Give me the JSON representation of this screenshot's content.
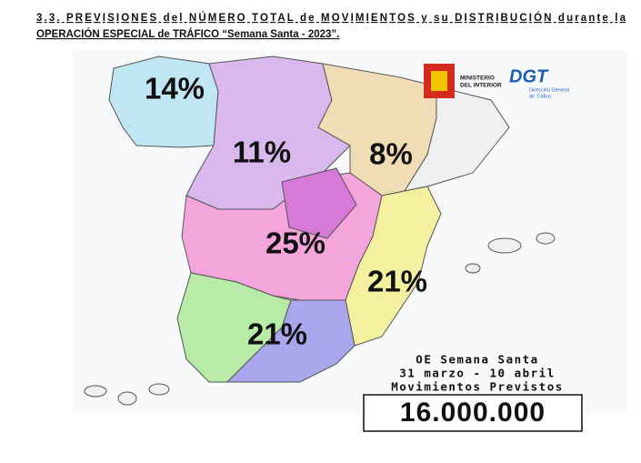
{
  "header": {
    "lines": [
      "3.3. PREVISIONES del NÚMERO TOTAL de MOVIMIENTOS y su DISTRIBUCIÓN durante la",
      "OPERACIÓN ESPECIAL de TRÁFICO “Semana Santa - 2023”."
    ]
  },
  "logos": {
    "ministerio": [
      "MINISTERIO",
      "DEL INTERIOR"
    ],
    "dgt": "DGT",
    "dgt_sub": [
      "Dirección General",
      "de Tráfico"
    ]
  },
  "map": {
    "regions": [
      {
        "label": "14%"
      },
      {
        "label": "11%"
      },
      {
        "label": "8%"
      },
      {
        "label": "25%"
      },
      {
        "label": "21%"
      },
      {
        "label": "21%"
      }
    ]
  },
  "summary": {
    "lines": [
      "OE Semana Santa",
      "31 marzo - 10 abril",
      "Movimientos Previstos"
    ],
    "total": "16.000.000"
  }
}
